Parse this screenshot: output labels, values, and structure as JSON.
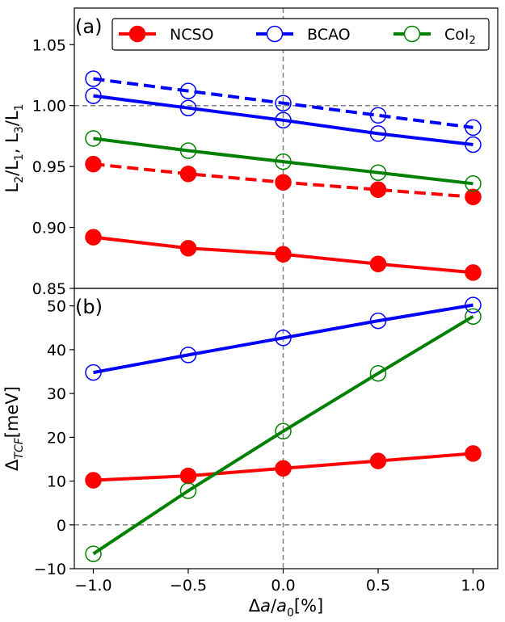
{
  "chart_data": [
    {
      "type": "line",
      "panel_label": "(a)",
      "ylabel_parts": [
        "L",
        "2",
        "/L",
        "1",
        ", L",
        "3",
        "/L",
        "1"
      ],
      "ylabel": "L2/L1, L3/L1",
      "xlim": [
        -1.1,
        1.13
      ],
      "ylim": [
        0.85,
        1.08
      ],
      "yticks": [
        0.85,
        0.9,
        0.95,
        1.0,
        1.05
      ],
      "ytick_labels": [
        "0.85",
        "0.90",
        "0.95",
        "1.00",
        "1.05"
      ],
      "reference_lines": {
        "y": 1.0,
        "x": 0.0,
        "style": "dashed",
        "color": "#808080"
      },
      "x": [
        -1.0,
        -0.5,
        0.0,
        0.5,
        1.0
      ],
      "series": [
        {
          "name": "NCSO L2/L1",
          "material": "NCSO",
          "color": "#ff0000",
          "marker": "filled",
          "linestyle": "solid",
          "values": [
            0.892,
            0.883,
            0.878,
            0.87,
            0.863
          ]
        },
        {
          "name": "NCSO L3/L1",
          "material": "NCSO",
          "color": "#ff0000",
          "marker": "filled",
          "linestyle": "dashed",
          "values": [
            0.952,
            0.944,
            0.937,
            0.931,
            0.925
          ]
        },
        {
          "name": "BCAO L2/L1",
          "material": "BCAO",
          "color": "#0000ff",
          "marker": "open",
          "linestyle": "solid",
          "values": [
            1.008,
            0.998,
            0.988,
            0.977,
            0.968
          ]
        },
        {
          "name": "BCAO L3/L1",
          "material": "BCAO",
          "color": "#0000ff",
          "marker": "open",
          "linestyle": "dashed",
          "values": [
            1.022,
            1.012,
            1.002,
            0.992,
            0.982
          ]
        },
        {
          "name": "CoI2 L2/L1",
          "material": "CoI2",
          "color": "#008000",
          "marker": "open",
          "linestyle": "solid",
          "values": [
            0.973,
            0.963,
            0.954,
            0.945,
            0.936
          ]
        }
      ],
      "legend": {
        "placement": "top-right",
        "entries": [
          {
            "label": "NCSO",
            "color": "#ff0000",
            "marker": "filled"
          },
          {
            "label": "BCAO",
            "color": "#0000ff",
            "marker": "open"
          },
          {
            "label": "CoI",
            "label_sub": "2",
            "color": "#008000",
            "marker": "open"
          }
        ]
      }
    },
    {
      "type": "line",
      "panel_label": "(b)",
      "ylabel_main": "Δ",
      "ylabel_sub": "TCF",
      "ylabel_rest": "[meV]",
      "ylabel": "ΔTCF[meV]",
      "xlim": [
        -1.1,
        1.13
      ],
      "ylim": [
        -10,
        54
      ],
      "yticks": [
        -10,
        0,
        10,
        20,
        30,
        40,
        50
      ],
      "ytick_labels": [
        "−10",
        "0",
        "10",
        "20",
        "30",
        "40",
        "50"
      ],
      "xticks": [
        -1.0,
        -0.5,
        0.0,
        0.5,
        1.0
      ],
      "xtick_labels": [
        "−1.0",
        "−0.5",
        "0.0",
        "0.5",
        "1.0"
      ],
      "xlabel_parts": [
        "Δ",
        "a",
        "/",
        "a",
        "0",
        "[%]"
      ],
      "xlabel": "Δa/a0[%]",
      "reference_lines": {
        "y": 0.0,
        "x": 0.0,
        "style": "dashed",
        "color": "#808080"
      },
      "x": [
        -1.0,
        -0.5,
        0.0,
        0.5,
        1.0
      ],
      "series": [
        {
          "name": "NCSO",
          "color": "#ff0000",
          "marker": "filled",
          "linestyle": "solid",
          "values": [
            10.2,
            11.2,
            12.9,
            14.6,
            16.3
          ]
        },
        {
          "name": "BCAO",
          "color": "#0000ff",
          "marker": "open",
          "linestyle": "solid",
          "values": [
            34.8,
            38.8,
            42.7,
            46.6,
            50.2
          ]
        },
        {
          "name": "CoI2",
          "color": "#008000",
          "marker": "open",
          "linestyle": "solid",
          "values": [
            -6.6,
            7.8,
            21.4,
            34.6,
            47.6
          ]
        }
      ]
    }
  ]
}
